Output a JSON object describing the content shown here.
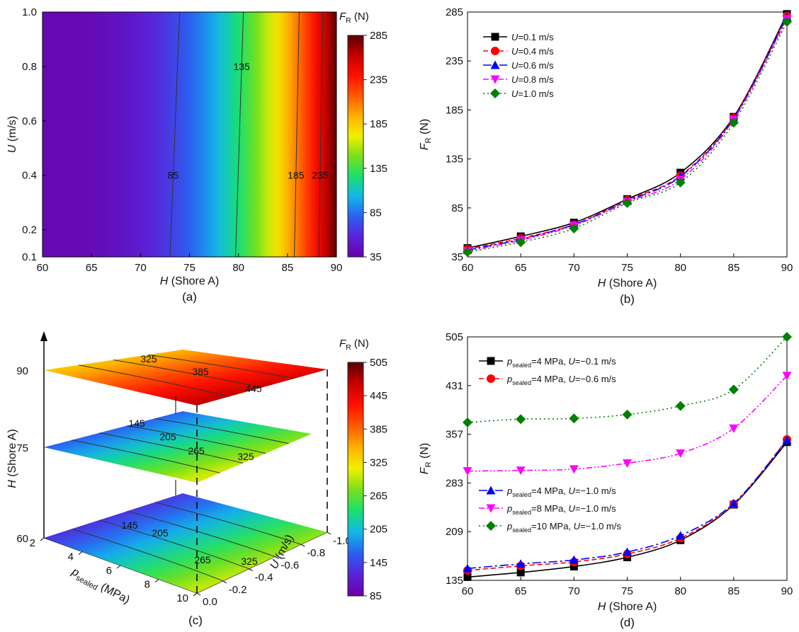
{
  "colors": {
    "colormap": [
      "#6a00a8",
      "#5a22d8",
      "#2b5ff0",
      "#12b7ea",
      "#1ae06e",
      "#7ae01a",
      "#f2f000",
      "#ffb000",
      "#ff5a00",
      "#ff1000",
      "#c80000",
      "#5a0000"
    ],
    "series": [
      "#000000",
      "#ff0000",
      "#0000ff",
      "#ff00ff",
      "#008000"
    ]
  },
  "chart_data": [
    {
      "id": "a",
      "type": "heatmap",
      "caption": "(a)",
      "xlabel": "H (Shore A)",
      "ylabel": "U (m/s)",
      "xlim": [
        60,
        90
      ],
      "ylim": [
        0.1,
        1.0
      ],
      "xticks": [
        "60",
        "65",
        "70",
        "75",
        "80",
        "85",
        "90"
      ],
      "yticks": [
        "0.1",
        "0.2",
        "0.4",
        "0.6",
        "0.8",
        "1.0"
      ],
      "colorbar": {
        "title": "F_R (N)",
        "range": [
          35,
          285
        ],
        "ticks": [
          "35",
          "85",
          "135",
          "185",
          "235",
          "285"
        ]
      },
      "contours": [
        {
          "label": "85",
          "value": 85,
          "h_at_u_0_1": 73.0,
          "h_at_u_1_0": 74.0,
          "label_u": 0.4
        },
        {
          "label": "135",
          "value": 135,
          "h_at_u_0_1": 79.7,
          "h_at_u_1_0": 80.5,
          "label_u": 0.8
        },
        {
          "label": "185",
          "value": 185,
          "h_at_u_0_1": 85.7,
          "h_at_u_1_0": 86.2,
          "label_u": 0.4
        },
        {
          "label": "235",
          "value": 235,
          "h_at_u_0_1": 88.2,
          "h_at_u_1_0": 88.6,
          "label_u": 0.4
        }
      ]
    },
    {
      "id": "b",
      "type": "line",
      "caption": "(b)",
      "xlabel": "H (Shore A)",
      "ylabel": "F_R (N)",
      "xlim": [
        60,
        90
      ],
      "ylim": [
        35,
        285
      ],
      "xticks": [
        "60",
        "65",
        "70",
        "75",
        "80",
        "85",
        "90"
      ],
      "yticks": [
        "35",
        "85",
        "135",
        "185",
        "235",
        "285"
      ],
      "x": [
        60,
        65,
        70,
        75,
        80,
        85,
        90
      ],
      "series": [
        {
          "name": "U=0.1 m/s",
          "values": [
            44,
            56,
            70,
            94,
            121,
            178,
            283
          ],
          "color": "#000000",
          "marker": "square",
          "dash": ""
        },
        {
          "name": "U=0.4 m/s",
          "values": [
            43,
            54,
            68,
            93,
            118,
            177,
            281
          ],
          "color": "#ff0000",
          "marker": "circle",
          "dash": "7,4"
        },
        {
          "name": "U=0.6 m/s",
          "values": [
            42,
            53,
            68,
            92,
            117,
            176,
            280
          ],
          "color": "#0000ff",
          "marker": "triangle-up",
          "dash": "12,4,3,4"
        },
        {
          "name": "U=0.8 m/s",
          "values": [
            41,
            52,
            67,
            91,
            114,
            175,
            278
          ],
          "color": "#ff00ff",
          "marker": "triangle-down",
          "dash": "8,3,2,3,2,3"
        },
        {
          "name": "U=1.0 m/s",
          "values": [
            40,
            50,
            64,
            90,
            111,
            172,
            275
          ],
          "color": "#008000",
          "marker": "diamond",
          "dash": "2,4"
        }
      ]
    },
    {
      "id": "c",
      "type": "heatmap",
      "caption": "(c)",
      "xlabel": "p_sealed (MPa)",
      "ylabel": "U (m/s)",
      "zlabel": "H (Shore A)",
      "x_ticks": [
        "2",
        "4",
        "6",
        "8",
        "10"
      ],
      "y_ticks": [
        "0.0",
        "-0.2",
        "-0.4",
        "-0.6",
        "-0.8",
        "-1.0"
      ],
      "z_ticks": [
        "60",
        "75",
        "90"
      ],
      "colorbar": {
        "title": "F_R (N)",
        "range": [
          85,
          505
        ],
        "ticks": [
          "85",
          "145",
          "205",
          "265",
          "325",
          "385",
          "445",
          "505"
        ]
      },
      "slices": [
        {
          "h": "90",
          "contour_labels": [
            "325",
            "385",
            "445"
          ]
        },
        {
          "h": "75",
          "contour_labels": [
            "145",
            "205",
            "265",
            "325"
          ]
        },
        {
          "h": "60",
          "contour_labels": [
            "145",
            "205",
            "265",
            "325"
          ]
        }
      ]
    },
    {
      "id": "d",
      "type": "line",
      "caption": "(d)",
      "xlabel": "H (Shore A)",
      "ylabel": "F_R (N)",
      "xlim": [
        60,
        90
      ],
      "ylim": [
        135,
        505
      ],
      "xticks": [
        "60",
        "65",
        "70",
        "75",
        "80",
        "85",
        "90"
      ],
      "yticks": [
        "135",
        "209",
        "283",
        "357",
        "431",
        "505"
      ],
      "x": [
        60,
        65,
        70,
        75,
        80,
        85,
        90
      ],
      "series": [
        {
          "name": "p_sealed=4 MPa, U=−0.1 m/s",
          "values": [
            140,
            147,
            156,
            170,
            196,
            250,
            345
          ],
          "color": "#000000",
          "marker": "square",
          "dash": ""
        },
        {
          "name": "p_sealed=4 MPa, U=−0.6 m/s",
          "values": [
            150,
            157,
            163,
            175,
            199,
            251,
            349
          ],
          "color": "#ff0000",
          "marker": "circle",
          "dash": "7,4"
        },
        {
          "name": "p_sealed=4 MPa, U=−1.0 m/s",
          "values": [
            153,
            160,
            166,
            178,
            203,
            252,
            348
          ],
          "color": "#0000ff",
          "marker": "triangle-up",
          "dash": "12,4,3,4"
        },
        {
          "name": "p_sealed=8 MPa, U=−1.0 m/s",
          "values": [
            301,
            302,
            304,
            313,
            328,
            366,
            446
          ],
          "color": "#ff00ff",
          "marker": "triangle-down",
          "dash": "8,3,2,3,2,3"
        },
        {
          "name": "p_sealed=10 MPa, U=−1.0 m/s",
          "values": [
            375,
            380,
            381,
            387,
            400,
            425,
            505
          ],
          "color": "#008000",
          "marker": "diamond",
          "dash": "2,4"
        }
      ]
    }
  ]
}
